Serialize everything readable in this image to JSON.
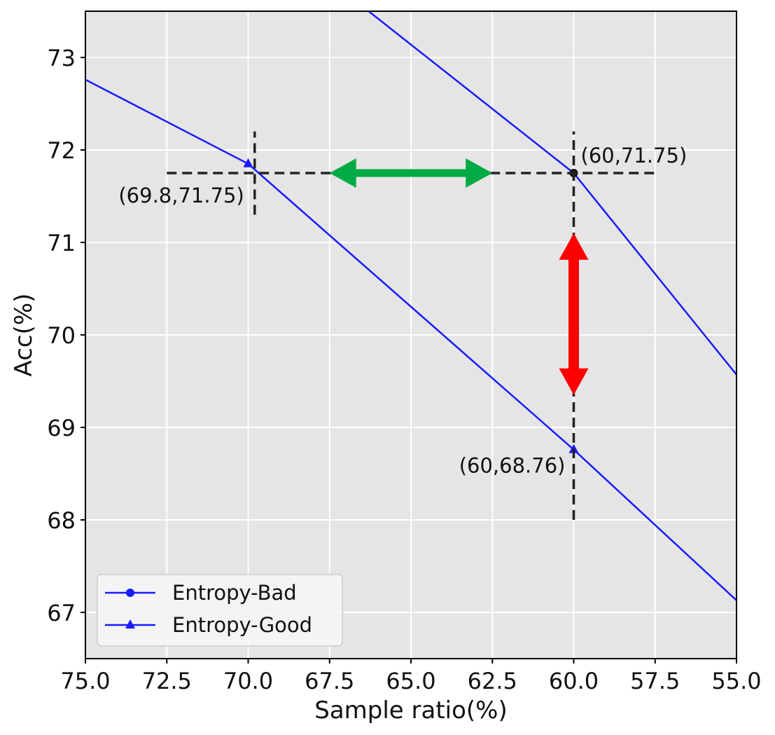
{
  "chart_data": {
    "type": "line",
    "title": "",
    "xlabel": "Sample ratio(%)",
    "ylabel": "Acc(%)",
    "xlim": [
      75,
      55
    ],
    "ylim": [
      66.5,
      73.5
    ],
    "x_reversed": true,
    "grid": true,
    "background": "#e5e5e5",
    "x_ticks": [
      75.0,
      72.5,
      70.0,
      67.5,
      65.0,
      62.5,
      60.0,
      57.5,
      55.0
    ],
    "x_tick_labels": [
      "75.0",
      "72.5",
      "70.0",
      "67.5",
      "65.0",
      "62.5",
      "60.0",
      "57.5",
      "55.0"
    ],
    "y_ticks": [
      67,
      68,
      69,
      70,
      71,
      72,
      73
    ],
    "y_tick_labels": [
      "67",
      "68",
      "69",
      "70",
      "71",
      "72",
      "73"
    ],
    "series": [
      {
        "name": "Entropy-Bad",
        "color": "#1a1aff",
        "marker": "circle",
        "x": [
          66.3,
          60,
          55
        ],
        "y": [
          73.5,
          71.75,
          69.57
        ],
        "marked_points": [
          [
            60,
            71.75
          ]
        ]
      },
      {
        "name": "Entropy-Good",
        "color": "#1a1aff",
        "marker": "triangle",
        "x": [
          75,
          70,
          60,
          55
        ],
        "y": [
          72.76,
          71.85,
          68.76,
          67.13
        ],
        "marked_points": [
          [
            70,
            71.85
          ],
          [
            60,
            68.76
          ]
        ]
      }
    ],
    "annotations": [
      {
        "text": "(60,71.75)",
        "x": 60,
        "y": 71.75
      },
      {
        "text": "(69.8,71.75)",
        "x": 69.8,
        "y": 71.75
      },
      {
        "text": "(60,68.76)",
        "x": 60,
        "y": 68.76
      }
    ],
    "reference_lines": [
      {
        "orientation": "horizontal",
        "y": 71.75,
        "from_x": 72.5,
        "to_x": 57.5,
        "style": "dashed"
      },
      {
        "orientation": "vertical",
        "x": 69.8,
        "from_y": 71.3,
        "to_y": 72.2,
        "style": "dashed"
      },
      {
        "orientation": "vertical",
        "x": 60,
        "from_y": 68.0,
        "to_y": 72.2,
        "style": "dashed"
      }
    ],
    "arrows": [
      {
        "color": "#00aa44",
        "orientation": "horizontal",
        "y": 71.75,
        "from_x": 67.5,
        "to_x": 62.5,
        "double_headed": true
      },
      {
        "color": "#ff0000",
        "orientation": "vertical",
        "x": 60,
        "from_y": 71.1,
        "to_y": 69.35,
        "double_headed": true
      }
    ],
    "legend": {
      "position": "lower-left",
      "entries": [
        "Entropy-Bad",
        "Entropy-Good"
      ]
    }
  }
}
